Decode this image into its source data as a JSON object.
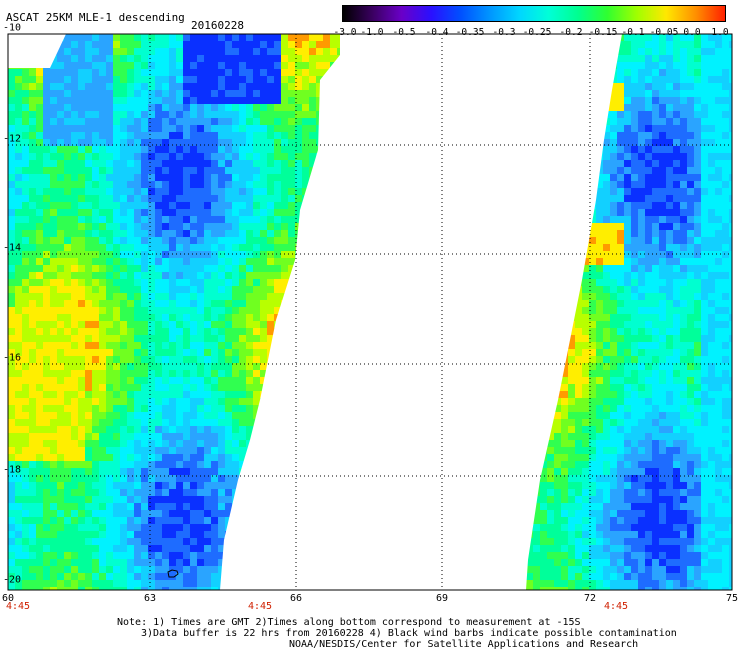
{
  "header": {
    "title": "ASCAT 25KM MLE-1 descending",
    "date": "20160228"
  },
  "colorbar": {
    "labels": [
      "-3.0",
      "-1.0",
      "-0.5",
      "-0.4",
      "-0.35",
      "-0.3",
      "-0.25",
      "-0.2",
      "-0.15",
      "-0.1",
      "-0.05",
      "0.0",
      "1.0"
    ],
    "colors": [
      "#000000",
      "#3a0060",
      "#6a00c8",
      "#2a10ff",
      "#0050ff",
      "#0096ff",
      "#00d6ff",
      "#00ffd8",
      "#00ff90",
      "#30ff30",
      "#a0ff00",
      "#ffe800",
      "#ff9000",
      "#ff2000"
    ]
  },
  "map": {
    "lat_labels": [
      "-10",
      "-12",
      "-14",
      "-16",
      "-18",
      "-20"
    ],
    "lon_labels": [
      "60",
      "63",
      "66",
      "69",
      "72",
      "75"
    ],
    "time_labels": [
      "4:45",
      "4:45",
      "4:45"
    ]
  },
  "notes": {
    "line1": "Note: 1) Times are GMT 2)Times along bottom correspond to measurement at -15S",
    "line2": "3)Data buffer is 22 hrs from 20160228 4) Black wind barbs indicate possible contamination",
    "line3": "NOAA/NESDIS/Center for Satellite Applications and Research"
  }
}
